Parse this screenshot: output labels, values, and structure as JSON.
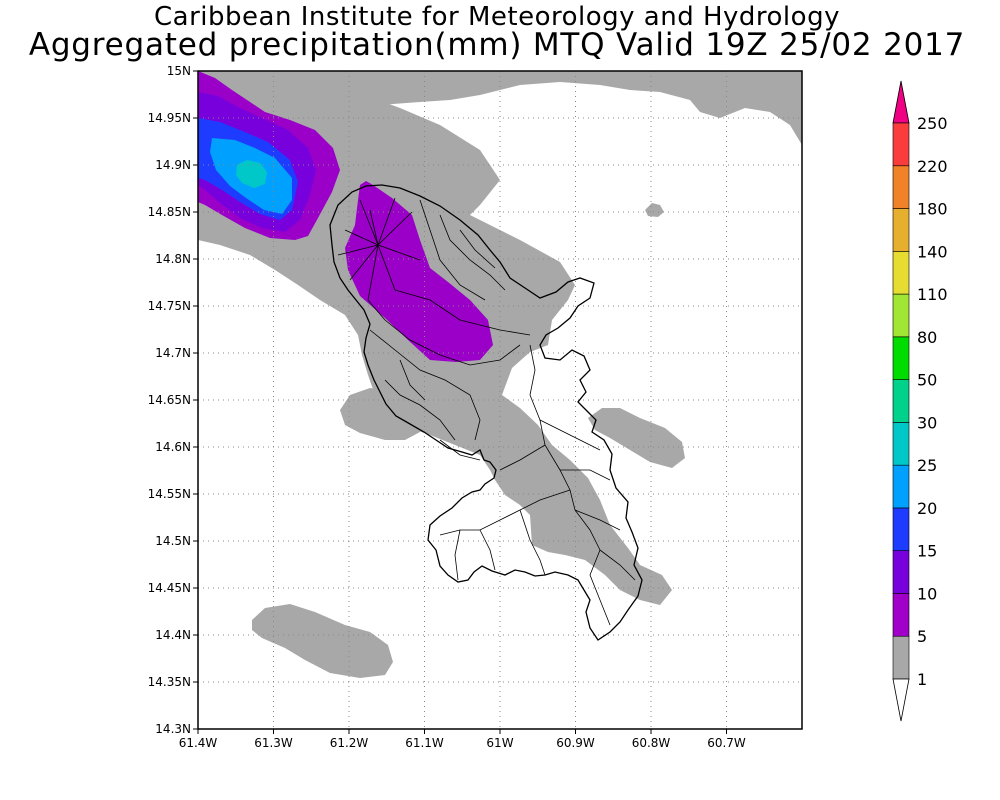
{
  "header": {
    "title_line1": "Caribbean Institute for Meteorology and Hydrology",
    "title_line2": "Aggregated precipitation(mm) MTQ Valid 19Z 25/02 2017"
  },
  "map": {
    "region": "Martinique",
    "lon_range": [
      -61.4,
      -60.6
    ],
    "lat_range": [
      14.3,
      15.0
    ],
    "grid": "dotted",
    "x_tick_labels": [
      "61.4W",
      "61.3W",
      "61.2W",
      "61.1W",
      "61W",
      "60.9W",
      "60.8W",
      "60.7W"
    ],
    "y_tick_labels": [
      "15N",
      "14.95N",
      "14.9N",
      "14.85N",
      "14.8N",
      "14.75N",
      "14.7N",
      "14.65N",
      "14.6N",
      "14.55N",
      "14.5N",
      "14.45N",
      "14.4N",
      "14.35N",
      "14.3N"
    ]
  },
  "legend": {
    "unit": "mm",
    "levels": [
      "1",
      "5",
      "10",
      "15",
      "20",
      "25",
      "30",
      "50",
      "80",
      "110",
      "140",
      "180",
      "220",
      "250"
    ],
    "colors": [
      "#ffffff",
      "#a8a8a8",
      "#a000c8",
      "#7800dc",
      "#1e3cff",
      "#00a0ff",
      "#00c8c8",
      "#00d28c",
      "#00dc00",
      "#a0e632",
      "#e6dc32",
      "#e6af2d",
      "#f08228",
      "#fa3c3c",
      "#f00082"
    ]
  },
  "colors": {
    "gray": "#a8a8a8",
    "purple": "#9a00c8",
    "violet": "#7800dc",
    "blue": "#1e3cff",
    "lightblue": "#00a0ff",
    "cyan": "#00c8c8"
  }
}
